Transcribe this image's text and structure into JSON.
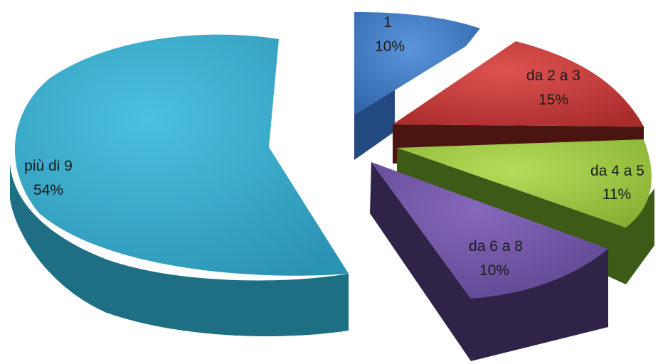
{
  "chart_data": {
    "type": "pie",
    "title": "",
    "slices": [
      {
        "label": "1",
        "value": 10,
        "value_text": "10%",
        "color": "#3a78c4"
      },
      {
        "label": "da 2 a 3",
        "value": 15,
        "value_text": "15%",
        "color": "#c03a38"
      },
      {
        "label": "da 4 a 5",
        "value": 11,
        "value_text": "11%",
        "color": "#98c240"
      },
      {
        "label": "da 6 a 8",
        "value": 10,
        "value_text": "10%",
        "color": "#6f55a3"
      },
      {
        "label": "più di 9",
        "value": 54,
        "value_text": "54%",
        "color": "#3aa8c8"
      }
    ],
    "style": "3d-exploded",
    "legend": "none",
    "data_labels": "category and percentage"
  }
}
